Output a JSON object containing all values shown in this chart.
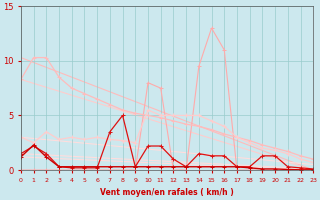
{
  "x": [
    0,
    1,
    2,
    3,
    4,
    5,
    6,
    7,
    8,
    9,
    10,
    11,
    12,
    13,
    14,
    15,
    16,
    17,
    18,
    19,
    20,
    21,
    22,
    23
  ],
  "series": [
    {
      "name": "light_pink_jagged",
      "y": [
        0.0,
        0.0,
        0.0,
        0.0,
        0.0,
        0.0,
        0.0,
        0.0,
        0.0,
        0.0,
        8.0,
        7.5,
        0.0,
        0.0,
        9.5,
        13.0,
        11.0,
        0.0,
        0.0,
        0.0,
        0.0,
        0.0,
        0.0,
        0.0
      ],
      "color": "#ffaaaa",
      "lw": 0.8,
      "marker": "+"
    },
    {
      "name": "pink_decreasing_line1",
      "y": [
        8.3,
        10.3,
        10.3,
        8.5,
        7.5,
        7.0,
        6.5,
        6.0,
        5.5,
        5.2,
        5.0,
        4.8,
        4.5,
        4.2,
        4.0,
        3.7,
        3.3,
        3.0,
        2.7,
        2.3,
        2.0,
        1.7,
        1.3,
        1.0
      ],
      "color": "#ffbbbb",
      "lw": 0.9,
      "marker": "+"
    },
    {
      "name": "pink_decreasing_line2",
      "y": [
        3.0,
        2.5,
        3.5,
        2.8,
        3.0,
        2.8,
        3.0,
        2.8,
        2.7,
        2.5,
        5.5,
        5.0,
        5.0,
        5.0,
        5.0,
        4.5,
        4.0,
        3.0,
        2.5,
        2.0,
        1.8,
        1.5,
        1.0,
        0.7
      ],
      "color": "#ffcccc",
      "lw": 0.9,
      "marker": "+"
    },
    {
      "name": "red_small_jagged",
      "y": [
        1.5,
        2.2,
        1.5,
        0.3,
        0.2,
        0.2,
        0.2,
        3.5,
        5.0,
        0.3,
        2.2,
        2.2,
        1.0,
        0.3,
        1.5,
        1.3,
        1.3,
        0.3,
        0.3,
        1.3,
        1.3,
        0.3,
        0.2,
        0.1
      ],
      "color": "#dd1111",
      "lw": 0.9,
      "marker": "+"
    },
    {
      "name": "dark_red_flat",
      "y": [
        1.2,
        2.3,
        1.2,
        0.3,
        0.3,
        0.3,
        0.3,
        0.3,
        0.3,
        0.3,
        0.3,
        0.3,
        0.3,
        0.3,
        0.3,
        0.3,
        0.3,
        0.3,
        0.2,
        0.1,
        0.1,
        0.05,
        0.02,
        0.02
      ],
      "color": "#cc0000",
      "lw": 1.0,
      "marker": "+"
    }
  ],
  "straight_lines": [
    {
      "x0": 0,
      "y0": 10.3,
      "x1": 23,
      "y1": 0.0,
      "color": "#ffbbbb",
      "lw": 0.8
    },
    {
      "x0": 0,
      "y0": 8.3,
      "x1": 23,
      "y1": 0.0,
      "color": "#ffcccc",
      "lw": 0.8
    },
    {
      "x0": 0,
      "y0": 3.0,
      "x1": 23,
      "y1": 0.5,
      "color": "#ffdddd",
      "lw": 0.8
    },
    {
      "x0": 0,
      "y0": 1.5,
      "x1": 23,
      "y1": 0.1,
      "color": "#ffdddd",
      "lw": 0.8
    },
    {
      "x0": 0,
      "y0": 1.2,
      "x1": 23,
      "y1": 0.0,
      "color": "#ffdddd",
      "lw": 0.8
    }
  ],
  "xlabel": "Vent moyen/en rafales ( km/h )",
  "xlim": [
    0,
    23
  ],
  "ylim": [
    0,
    15
  ],
  "yticks": [
    0,
    5,
    10,
    15
  ],
  "xticks": [
    0,
    1,
    2,
    3,
    4,
    5,
    6,
    7,
    8,
    9,
    10,
    11,
    12,
    13,
    14,
    15,
    16,
    17,
    18,
    19,
    20,
    21,
    22,
    23
  ],
  "bg_color": "#cce8ee",
  "grid_color": "#99cccc",
  "text_color": "#cc0000",
  "fig_width": 3.2,
  "fig_height": 2.0,
  "dpi": 100
}
